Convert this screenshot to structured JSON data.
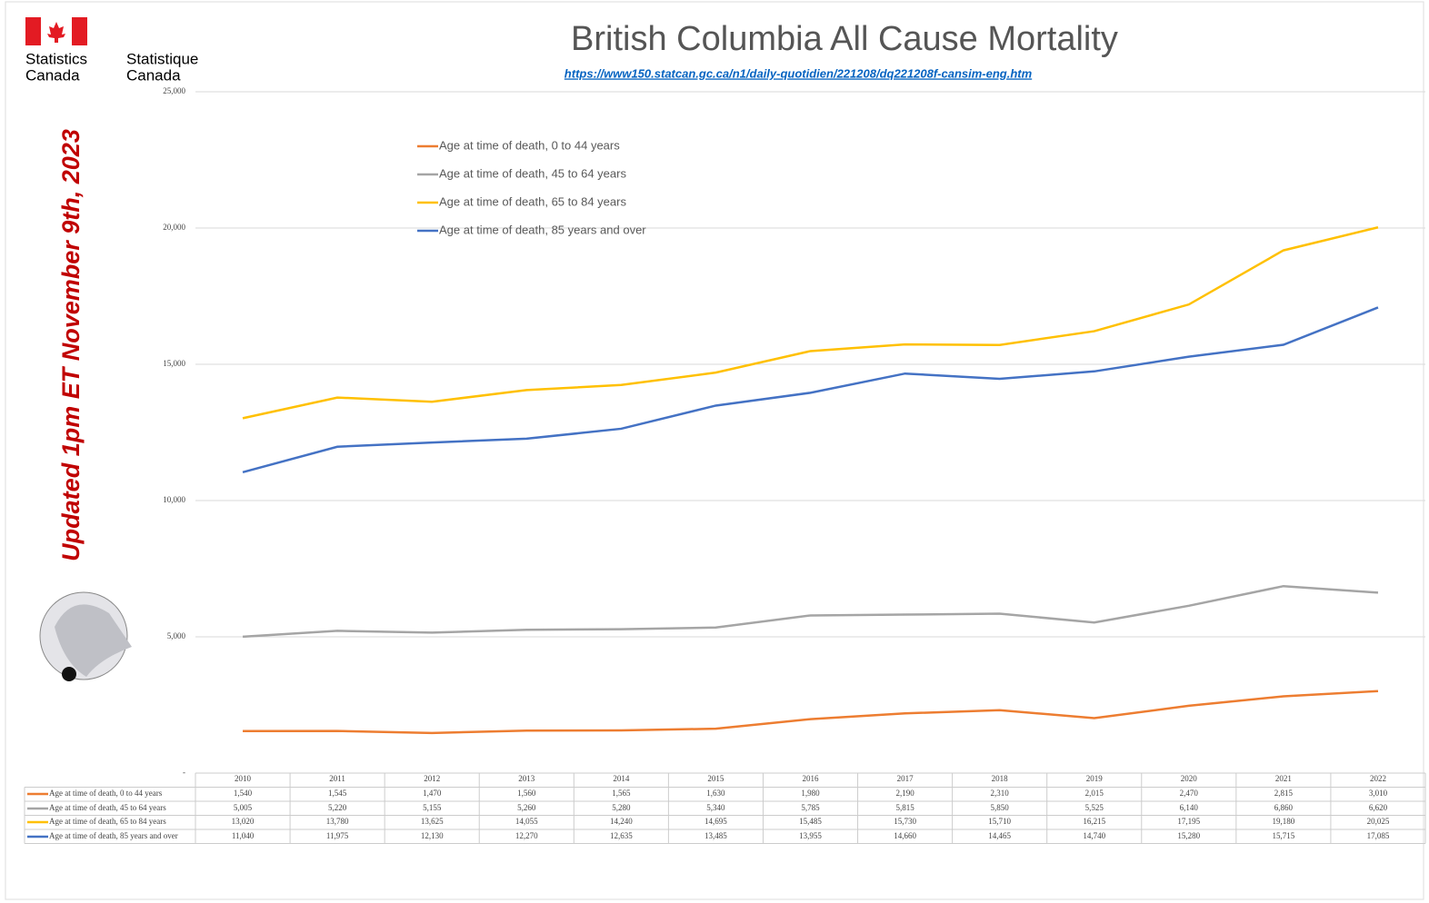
{
  "logo": {
    "en": [
      "Statistics",
      "Canada"
    ],
    "fr": [
      "Statistique",
      "Canada"
    ]
  },
  "chart_data": {
    "type": "line",
    "title": "British Columbia All Cause Mortality",
    "subtitle": "https://www150.statcan.gc.ca/n1/daily-quotidien/221208/dq221208f-cansim-eng.htm",
    "annotation": "Updated 1pm ET November 9th, 2023",
    "categories": [
      "2010",
      "2011",
      "2012",
      "2013",
      "2014",
      "2015",
      "2016",
      "2017",
      "2018",
      "2019",
      "2020",
      "2021",
      "2022"
    ],
    "ylim": [
      0,
      25000
    ],
    "yticks": [
      {
        "value": 0,
        "label": "-"
      },
      {
        "value": 5000,
        "label": "5,000"
      },
      {
        "value": 10000,
        "label": "10,000"
      },
      {
        "value": 15000,
        "label": "15,000"
      },
      {
        "value": 20000,
        "label": "20,000"
      },
      {
        "value": 25000,
        "label": "25,000"
      }
    ],
    "grid": true,
    "legend": "top-left",
    "series": [
      {
        "name": "Age at time of death, 0 to 44 years",
        "color": "#ed7d31",
        "values": [
          1540,
          1545,
          1470,
          1560,
          1565,
          1630,
          1980,
          2190,
          2310,
          2015,
          2470,
          2815,
          3010
        ],
        "value_labels": [
          "1,540",
          "1,545",
          "1,470",
          "1,560",
          "1,565",
          "1,630",
          "1,980",
          "2,190",
          "2,310",
          "2,015",
          "2,470",
          "2,815",
          "3,010"
        ]
      },
      {
        "name": "Age at time of death, 45 to 64 years",
        "color": "#a5a5a5",
        "values": [
          5005,
          5220,
          5155,
          5260,
          5280,
          5340,
          5785,
          5815,
          5850,
          5525,
          6140,
          6860,
          6620
        ],
        "value_labels": [
          "5,005",
          "5,220",
          "5,155",
          "5,260",
          "5,280",
          "5,340",
          "5,785",
          "5,815",
          "5,850",
          "5,525",
          "6,140",
          "6,860",
          "6,620"
        ]
      },
      {
        "name": "Age at time of death, 65 to 84 years",
        "color": "#ffc000",
        "values": [
          13020,
          13780,
          13625,
          14055,
          14240,
          14695,
          15485,
          15730,
          15710,
          16215,
          17195,
          19180,
          20025
        ],
        "value_labels": [
          "13,020",
          "13,780",
          "13,625",
          "14,055",
          "14,240",
          "14,695",
          "15,485",
          "15,730",
          "15,710",
          "16,215",
          "17,195",
          "19,180",
          "20,025"
        ]
      },
      {
        "name": "Age at time of death, 85 years and over",
        "color": "#4472c4",
        "values": [
          11040,
          11975,
          12130,
          12270,
          12635,
          13485,
          13955,
          14660,
          14465,
          14740,
          15280,
          15715,
          17085
        ],
        "value_labels": [
          "11,040",
          "11,975",
          "12,130",
          "12,270",
          "12,635",
          "13,485",
          "13,955",
          "14,660",
          "14,465",
          "14,740",
          "15,280",
          "15,715",
          "17,085"
        ]
      }
    ]
  }
}
